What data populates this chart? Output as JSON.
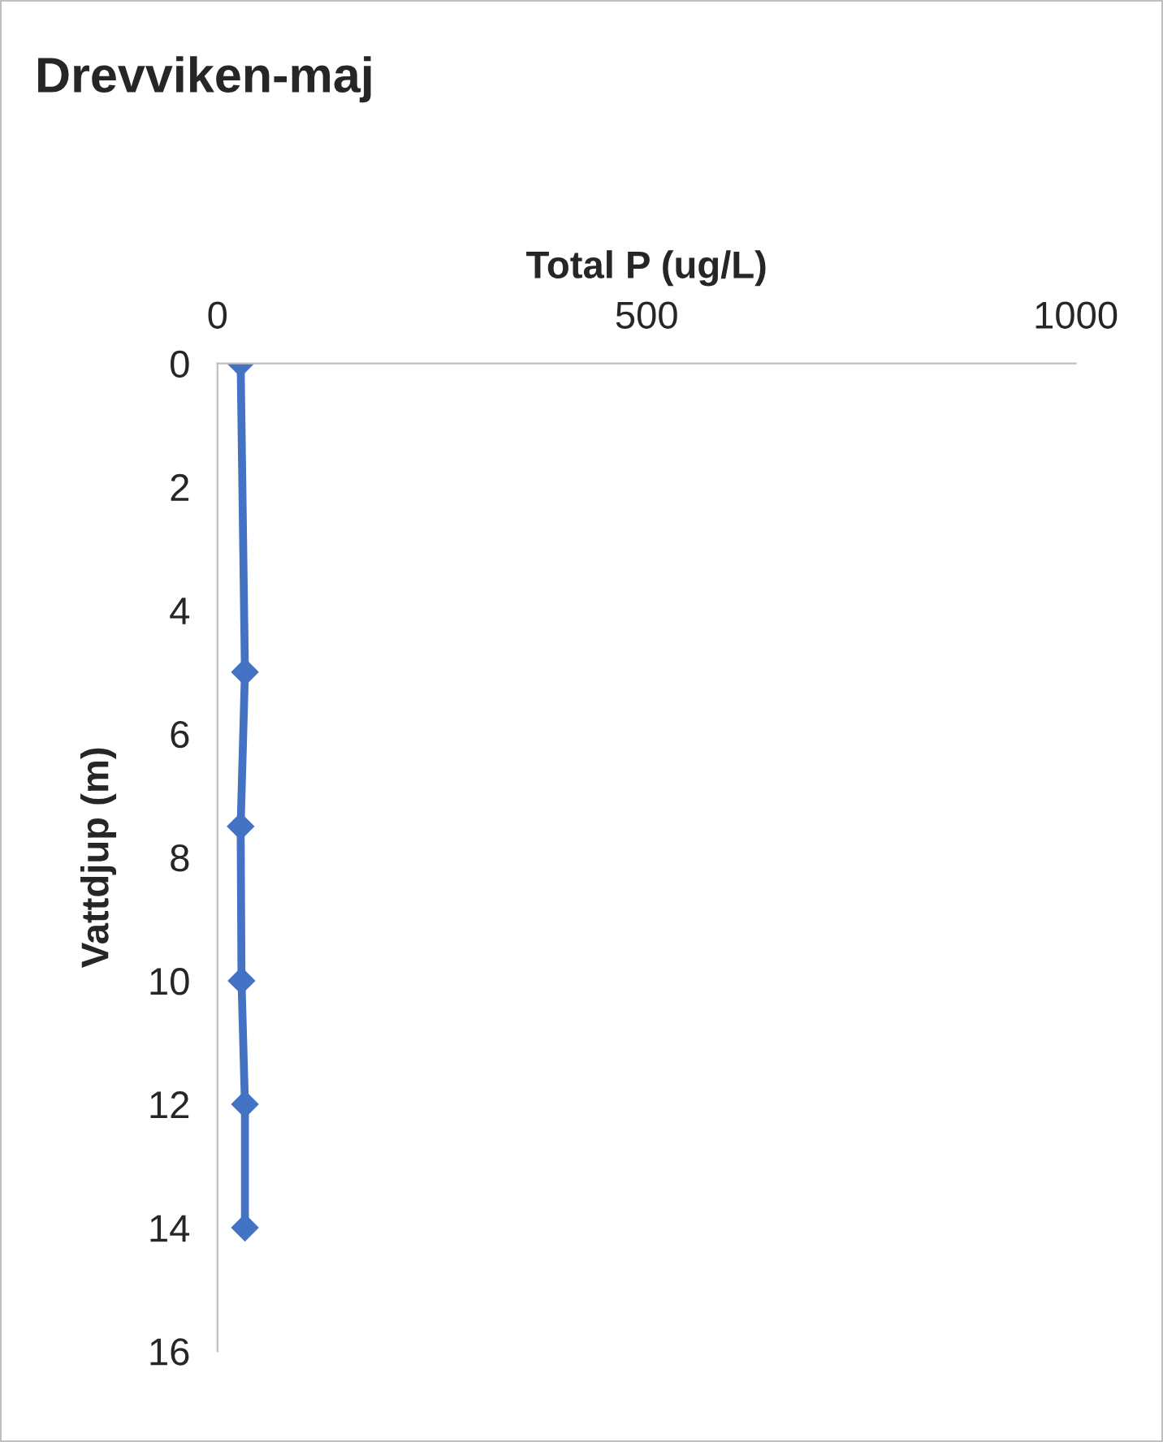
{
  "chart_data": {
    "type": "line",
    "title": "Drevviken-maj",
    "xlabel": "Total P (ug/L)",
    "ylabel": "Vattdjup (m)",
    "x": [
      27,
      32,
      27,
      28,
      32,
      32
    ],
    "series": [
      {
        "color": "#4472c4",
        "values": [
          0,
          5,
          7.5,
          10,
          12,
          14
        ]
      }
    ],
    "xlim": [
      0,
      1000
    ],
    "xticks": [
      0,
      500,
      1000
    ],
    "ylim": [
      16,
      0
    ],
    "yticks": [
      0,
      2,
      4,
      6,
      8,
      10,
      12,
      14,
      16
    ],
    "marker": "diamond",
    "line_style": "solid",
    "grid": false,
    "legend": false
  }
}
